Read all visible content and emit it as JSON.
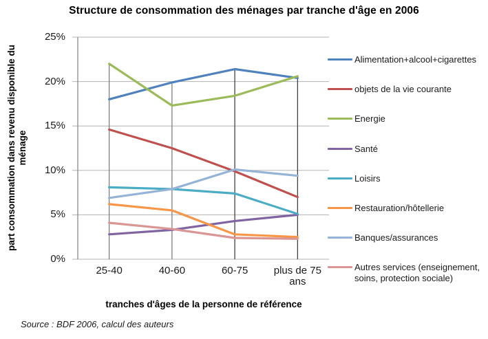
{
  "title": "Structure de consommation des ménages par tranche d'âge en 2006",
  "source": "Source : BDF 2006, calcul des auteurs",
  "chart_data": {
    "type": "line",
    "title": "Structure de consommation des ménages par tranche d'âge en 2006",
    "xlabel": "tranches d'âges de la personne de référence",
    "ylabel": "part consommation dans revenu disponible du ménage",
    "categories": [
      "25-40",
      "40-60",
      "60-75",
      "plus de 75 ans"
    ],
    "y_tick_labels": [
      "25%",
      "20%",
      "15%",
      "10%",
      "5%",
      "0%"
    ],
    "y_tick_values": [
      25,
      20,
      15,
      10,
      5,
      0
    ],
    "ylim": [
      0,
      25
    ],
    "grid": true,
    "legend_position": "right",
    "axis_color": "#808080",
    "gridline_color": "#b3b3b3",
    "series": [
      {
        "name": "Alimentation+alcool+cigarettes",
        "color": "#4F81BD",
        "values": [
          18.0,
          19.9,
          21.4,
          20.4
        ]
      },
      {
        "name": "objets de la vie courante",
        "color": "#C0504D",
        "values": [
          14.6,
          12.5,
          9.9,
          7.0
        ]
      },
      {
        "name": "Energie",
        "color": "#9BBB59",
        "values": [
          22.0,
          17.3,
          18.4,
          20.6
        ]
      },
      {
        "name": "Santé",
        "color": "#8064A2",
        "values": [
          2.8,
          3.3,
          4.3,
          5.0
        ]
      },
      {
        "name": "Loisirs",
        "color": "#4BACC6",
        "values": [
          8.1,
          7.9,
          7.4,
          5.1
        ]
      },
      {
        "name": "Restauration/hôtellerie",
        "color": "#F79646",
        "values": [
          6.2,
          5.5,
          2.8,
          2.5
        ]
      },
      {
        "name": "Banques/assurances",
        "color": "#95B3D7",
        "values": [
          6.9,
          7.9,
          10.1,
          9.4
        ]
      },
      {
        "name": "Autres services (enseignement, soins, protection sociale)",
        "color": "#D99694",
        "values": [
          4.1,
          3.4,
          2.4,
          2.3
        ]
      }
    ],
    "category_drop_lines": {
      "colors": [
        "#808080",
        "#808080",
        "#404040",
        "#404040"
      ]
    }
  }
}
